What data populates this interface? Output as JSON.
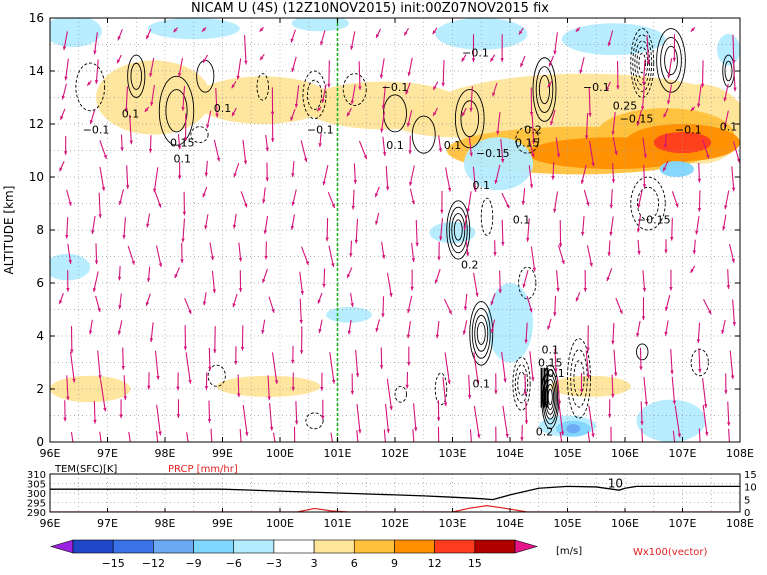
{
  "title": "NICAM U (4S) (12Z10NOV2015) init:00Z07NOV2015 fix",
  "colors": {
    "pos1": "#ffe59a",
    "pos2": "#ffc13b",
    "pos3": "#ff8f00",
    "pos4": "#ff3c1e",
    "pos5": "#b00000",
    "neg1": "#b3ecff",
    "neg2": "#7fd6ff",
    "neg3": "#6ba9f5",
    "neg4": "#3c72e8",
    "neg5": "#2146c8",
    "neg6": "#9b22e0",
    "over": "#e6158a",
    "vector": "#d4147a",
    "marker": "#1fb41f",
    "prcp": "#e02020"
  },
  "chart_data": [
    {
      "type": "heatmap",
      "xlabel": "",
      "ylabel": "ALTITUDE [km]",
      "x_range": [
        96,
        108
      ],
      "y_range": [
        0,
        16
      ],
      "x_ticks": [
        "96E",
        "97E",
        "98E",
        "99E",
        "100E",
        "101E",
        "102E",
        "103E",
        "104E",
        "105E",
        "106E",
        "107E",
        "108E"
      ],
      "y_ticks": [
        "0",
        "2",
        "4",
        "6",
        "8",
        "10",
        "12",
        "14",
        "16"
      ],
      "grid": true,
      "marker_line_lon": 101,
      "contour_labels": [
        {
          "text": "0.1",
          "x": 97.4,
          "y": 12.4
        },
        {
          "text": "−0.1",
          "x": 96.8,
          "y": 11.8
        },
        {
          "text": "0.15",
          "x": 98.3,
          "y": 11.3
        },
        {
          "text": "0.1",
          "x": 98.3,
          "y": 10.7
        },
        {
          "text": "0.1",
          "x": 99.0,
          "y": 12.6
        },
        {
          "text": "−0.1",
          "x": 100.7,
          "y": 11.8
        },
        {
          "text": "−0.1",
          "x": 102.0,
          "y": 13.4
        },
        {
          "text": "0.1",
          "x": 102.0,
          "y": 11.2
        },
        {
          "text": "0.1",
          "x": 103.0,
          "y": 11.2
        },
        {
          "text": "−0.1",
          "x": 103.4,
          "y": 14.7
        },
        {
          "text": "0.2",
          "x": 104.4,
          "y": 11.8
        },
        {
          "text": "−0.15",
          "x": 103.7,
          "y": 10.9
        },
        {
          "text": "0.15",
          "x": 104.3,
          "y": 11.3
        },
        {
          "text": "0.1",
          "x": 103.5,
          "y": 9.7
        },
        {
          "text": "0.1",
          "x": 104.2,
          "y": 8.4
        },
        {
          "text": "−0.1",
          "x": 105.5,
          "y": 13.4
        },
        {
          "text": "0.25",
          "x": 106.0,
          "y": 12.7
        },
        {
          "text": "−0.15",
          "x": 106.2,
          "y": 12.2
        },
        {
          "text": "−0.1",
          "x": 107.1,
          "y": 11.8
        },
        {
          "text": "0.1",
          "x": 107.8,
          "y": 11.9
        },
        {
          "text": "−0.15",
          "x": 106.5,
          "y": 8.4
        },
        {
          "text": "0.2",
          "x": 103.3,
          "y": 6.7
        },
        {
          "text": "0.1",
          "x": 104.7,
          "y": 3.5
        },
        {
          "text": "0.15",
          "x": 104.7,
          "y": 3.0
        },
        {
          "text": "0.1",
          "x": 104.8,
          "y": 2.6
        },
        {
          "text": "0.1",
          "x": 103.5,
          "y": 2.2
        },
        {
          "text": "0.2",
          "x": 104.6,
          "y": 0.4
        }
      ]
    },
    {
      "type": "line",
      "xlabel": "",
      "x_range": [
        96,
        108
      ],
      "x_ticks": [
        "96E",
        "97E",
        "98E",
        "99E",
        "100E",
        "101E",
        "102E",
        "103E",
        "104E",
        "105E",
        "106E",
        "107E",
        "108E"
      ],
      "left_label": "TEM(SFC)[K]",
      "right_label": "PRCP [mm/hr]",
      "left_ylim": [
        290,
        310
      ],
      "left_ticks": [
        "310",
        "305",
        "300",
        "295",
        "290"
      ],
      "right_ylim": [
        0,
        15
      ],
      "right_ticks": [
        "15",
        "10",
        "5",
        "0"
      ],
      "grid": true,
      "inline_label": "10",
      "series": [
        {
          "name": "TEM(SFC)[K]",
          "x": [
            96,
            97,
            98,
            99,
            99.5,
            100,
            101,
            102,
            102.5,
            103,
            103.5,
            103.7,
            104,
            104.5,
            105,
            105.5,
            105.9,
            106,
            106.2,
            107,
            108
          ],
          "values": [
            302,
            302,
            302,
            302,
            301.5,
            301,
            300,
            299,
            298.5,
            297.8,
            297,
            296.5,
            299,
            302.5,
            303.5,
            303.2,
            301.5,
            302.5,
            303.5,
            303.5,
            303.5
          ]
        },
        {
          "name": "PRCP [mm/hr]",
          "x": [
            96,
            100.3,
            100.6,
            100.9,
            101.2,
            103,
            103.3,
            103.6,
            103.9,
            104.3,
            108
          ],
          "values": [
            0,
            0,
            1.4,
            0.4,
            0,
            0,
            1.5,
            2.5,
            1.5,
            0,
            0
          ]
        }
      ]
    }
  ],
  "colorbar": {
    "labels": [
      "−15",
      "−12",
      "−9",
      "−6",
      "−3",
      "3",
      "6",
      "9",
      "12",
      "15"
    ],
    "unit": "[m/s]"
  },
  "vector_label": "Wx100(vector)"
}
